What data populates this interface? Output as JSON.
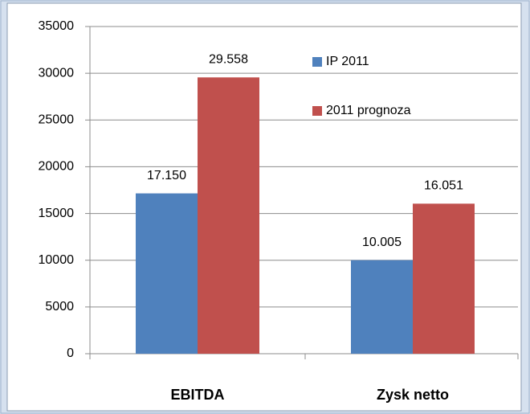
{
  "chart_data": {
    "type": "bar",
    "categories": [
      "EBITDA",
      "Zysk netto"
    ],
    "series": [
      {
        "name": "IP 2011",
        "color": "#4f81bd",
        "values": [
          17150,
          10005
        ],
        "value_labels": [
          "17.150",
          "10.005"
        ]
      },
      {
        "name": "2011 prognoza",
        "color": "#c0504d",
        "values": [
          29558,
          16051
        ],
        "value_labels": [
          "29.558",
          "16.051"
        ]
      }
    ],
    "ylim": [
      0,
      35000
    ],
    "yticks": [
      0,
      5000,
      10000,
      15000,
      20000,
      25000,
      30000,
      35000
    ],
    "grid": true
  }
}
